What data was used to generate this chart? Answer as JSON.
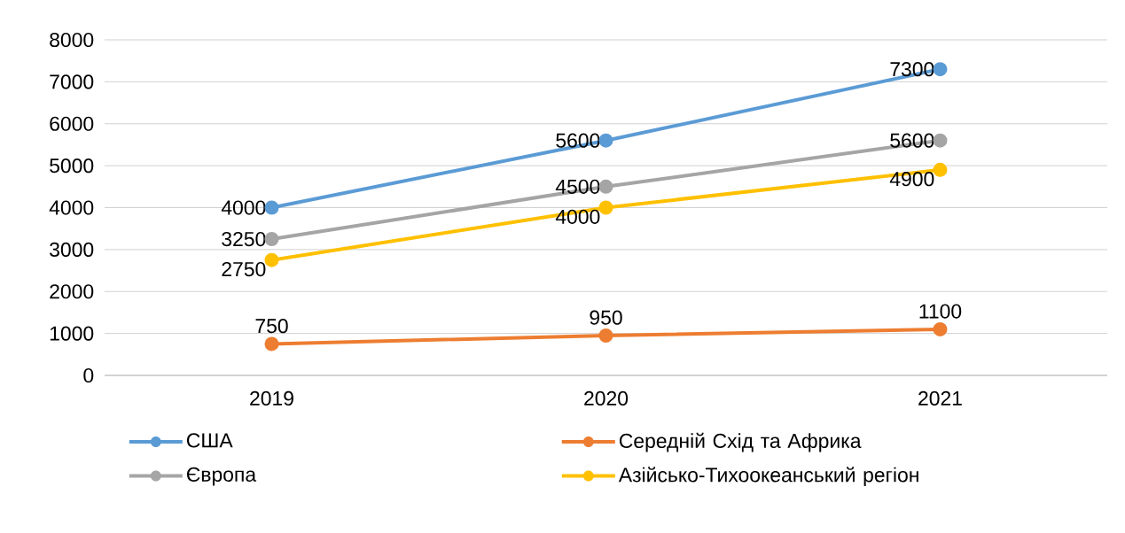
{
  "chart_data": {
    "type": "line",
    "categories": [
      "2019",
      "2020",
      "2021"
    ],
    "series": [
      {
        "name": "США",
        "color": "#5b9bd5",
        "values": [
          4000,
          5600,
          7300
        ]
      },
      {
        "name": "Середній Схід та Африка",
        "color": "#ed7d31",
        "values": [
          750,
          950,
          1100
        ]
      },
      {
        "name": "Європа",
        "color": "#a5a5a5",
        "values": [
          3250,
          4500,
          5600
        ]
      },
      {
        "name": "Азійсько-Тихоокеанський регіон",
        "color": "#ffc000",
        "values": [
          2750,
          4000,
          4900
        ]
      }
    ],
    "ylim": [
      0,
      8000
    ],
    "yticks": [
      0,
      1000,
      2000,
      3000,
      4000,
      5000,
      6000,
      7000,
      8000
    ],
    "grid": "y",
    "legend": "bottom",
    "marker": "circle",
    "line_style": "solid",
    "data_labels": true
  }
}
